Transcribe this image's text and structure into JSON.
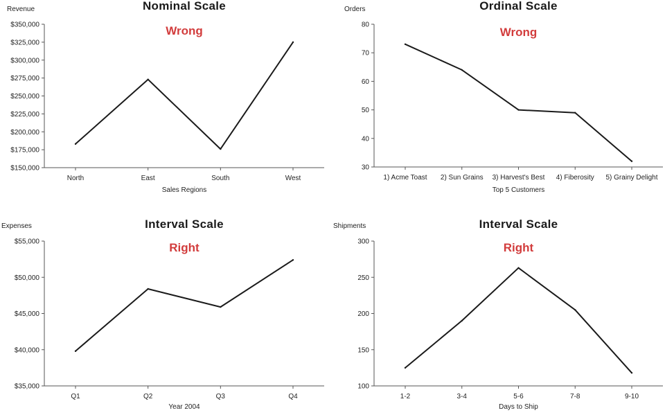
{
  "chart_data": [
    {
      "type": "line",
      "title": "Nominal Scale",
      "annotation": "Wrong",
      "ylabel": "Revenue",
      "xlabel": "Sales Regions",
      "categories": [
        "North",
        "East",
        "South",
        "West"
      ],
      "values": [
        183000,
        273000,
        176000,
        325000
      ],
      "ylim": [
        150000,
        350000
      ],
      "yticks": [
        "$150,000",
        "$175,000",
        "$200,000",
        "$225,000",
        "$250,000",
        "$275,000",
        "$300,000",
        "$325,000",
        "$350,000"
      ],
      "ytick_values": [
        150000,
        175000,
        200000,
        225000,
        250000,
        275000,
        300000,
        325000,
        350000
      ],
      "grid": false
    },
    {
      "type": "line",
      "title": "Ordinal Scale",
      "annotation": "Wrong",
      "ylabel": "Orders",
      "xlabel": "Top 5 Customers",
      "categories": [
        "1) Acme Toast",
        "2) Sun Grains",
        "3) Harvest's Best",
        "4) Fiberosity",
        "5) Grainy Delight"
      ],
      "values": [
        73,
        64,
        50,
        49,
        32
      ],
      "ylim": [
        30,
        80
      ],
      "yticks": [
        "30",
        "40",
        "50",
        "60",
        "70",
        "80"
      ],
      "ytick_values": [
        30,
        40,
        50,
        60,
        70,
        80
      ],
      "grid": false
    },
    {
      "type": "line",
      "title": "Interval Scale",
      "annotation": "Right",
      "ylabel": "Expenses",
      "xlabel": "Year 2004",
      "categories": [
        "Q1",
        "Q2",
        "Q3",
        "Q4"
      ],
      "values": [
        39800,
        48400,
        45900,
        52400
      ],
      "ylim": [
        35000,
        55000
      ],
      "yticks": [
        "$35,000",
        "$40,000",
        "$45,000",
        "$50,000",
        "$55,000"
      ],
      "ytick_values": [
        35000,
        40000,
        45000,
        50000,
        55000
      ],
      "grid": false
    },
    {
      "type": "line",
      "title": "Interval Scale",
      "annotation": "Right",
      "ylabel": "Shipments",
      "xlabel": "Days to Ship",
      "categories": [
        "1-2",
        "3-4",
        "5-6",
        "7-8",
        "9-10"
      ],
      "values": [
        125,
        190,
        263,
        205,
        118
      ],
      "ylim": [
        100,
        300
      ],
      "yticks": [
        "100",
        "150",
        "200",
        "250",
        "300"
      ],
      "ytick_values": [
        100,
        150,
        200,
        250,
        300
      ],
      "grid": false
    }
  ],
  "colors": {
    "wrong": "#d23c3c",
    "right": "#d23c3c",
    "line": "#1a1a1a",
    "axis": "#555555"
  }
}
